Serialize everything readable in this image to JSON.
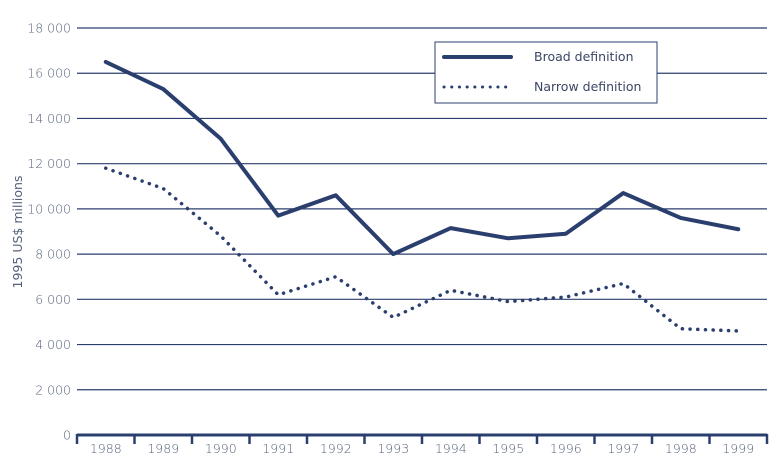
{
  "chart_data": {
    "type": "line",
    "title": "",
    "xlabel": "",
    "ylabel": "1995 US$ millions",
    "ylim": [
      0,
      18000
    ],
    "yticks": [
      0,
      2000,
      4000,
      6000,
      8000,
      10000,
      12000,
      14000,
      16000,
      18000
    ],
    "ytick_labels": [
      "0",
      "2 000",
      "4 000",
      "6 000",
      "8 000",
      "10 000",
      "12 000",
      "14 000",
      "16 000",
      "18 000"
    ],
    "categories": [
      "1988",
      "1989",
      "1990",
      "1991",
      "1992",
      "1993",
      "1994",
      "1995",
      "1996",
      "1997",
      "1998",
      "1999"
    ],
    "grid": true,
    "legend_position": "top-right",
    "series": [
      {
        "name": "Broad definition",
        "style": "solid",
        "values": [
          16500,
          15300,
          13100,
          9700,
          10600,
          8000,
          9150,
          8700,
          8900,
          10700,
          9600,
          9100
        ]
      },
      {
        "name": "Narrow definition",
        "style": "dotted",
        "values": [
          11800,
          10900,
          8800,
          6200,
          7000,
          5200,
          6400,
          5900,
          6100,
          6700,
          4700,
          4600
        ]
      }
    ],
    "colors": {
      "line": "#2b3f6e",
      "grid": "#2b3f6e",
      "text": "#55607a"
    }
  }
}
